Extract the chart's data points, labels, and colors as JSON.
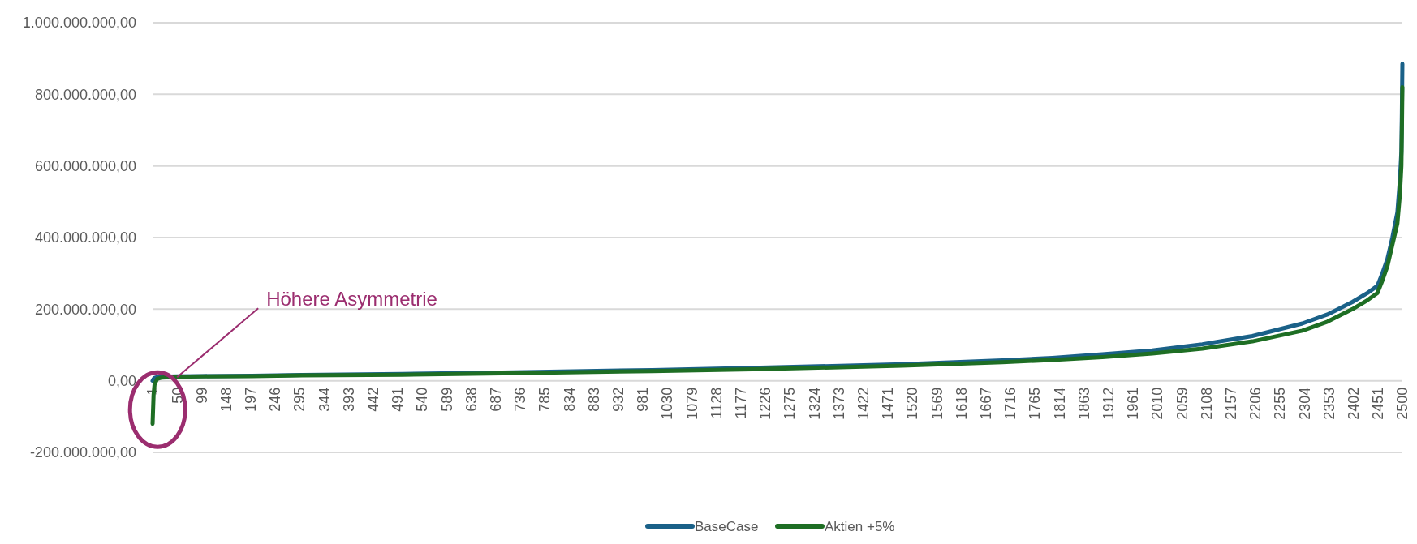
{
  "chart_data": {
    "type": "line",
    "xlim": [
      1,
      2500
    ],
    "xticks": [
      1,
      50,
      99,
      148,
      197,
      246,
      295,
      344,
      393,
      442,
      491,
      540,
      589,
      638,
      687,
      736,
      785,
      834,
      883,
      932,
      981,
      1030,
      1079,
      1128,
      1177,
      1226,
      1275,
      1324,
      1373,
      1422,
      1471,
      1520,
      1569,
      1618,
      1667,
      1716,
      1765,
      1814,
      1863,
      1912,
      1961,
      2010,
      2059,
      2108,
      2157,
      2206,
      2255,
      2304,
      2353,
      2402,
      2451,
      2500
    ],
    "ylim": [
      -200000000,
      1000000000
    ],
    "yticks": [
      {
        "value": -200000000,
        "label": "-200.000.000,00"
      },
      {
        "value": 0,
        "label": "0,00"
      },
      {
        "value": 200000000,
        "label": "200.000.000,00"
      },
      {
        "value": 400000000,
        "label": "400.000.000,00"
      },
      {
        "value": 600000000,
        "label": "600.000.000,00"
      },
      {
        "value": 800000000,
        "label": "800.000.000,00"
      },
      {
        "value": 1000000000,
        "label": "1.000.000.000,00"
      }
    ],
    "grid": "y",
    "legend": "bottom",
    "marker": "none",
    "line_style": "solid",
    "annotations": [
      {
        "text": "Höhere Asymmetrie",
        "x": 50,
        "y": 10000000
      }
    ],
    "x": [
      1,
      3,
      5,
      10,
      20,
      50,
      100,
      200,
      300,
      500,
      700,
      1000,
      1200,
      1500,
      1700,
      1800,
      1900,
      2000,
      2100,
      2200,
      2300,
      2350,
      2400,
      2430,
      2450,
      2460,
      2470,
      2480,
      2490,
      2495,
      2498,
      2499,
      2500
    ],
    "series": [
      {
        "name": "BaseCase",
        "color": "#1a6188",
        "values": [
          0,
          5000000,
          8000000,
          10000000,
          11000000,
          12000000,
          13000000,
          14000000,
          16000000,
          19000000,
          23000000,
          30000000,
          36000000,
          46000000,
          57000000,
          64000000,
          74000000,
          85000000,
          102000000,
          125000000,
          160000000,
          185000000,
          220000000,
          245000000,
          265000000,
          300000000,
          340000000,
          400000000,
          470000000,
          560000000,
          640000000,
          750000000,
          885000000
        ]
      },
      {
        "name": "Aktien +5%",
        "color": "#1e6e24",
        "values": [
          -120000000,
          -40000000,
          -10000000,
          5000000,
          9000000,
          11000000,
          12000000,
          13000000,
          15000000,
          17000000,
          21000000,
          27000000,
          32000000,
          42000000,
          52000000,
          58000000,
          66000000,
          76000000,
          90000000,
          110000000,
          140000000,
          165000000,
          200000000,
          225000000,
          245000000,
          280000000,
          320000000,
          380000000,
          440000000,
          520000000,
          600000000,
          700000000,
          820000000
        ]
      }
    ]
  }
}
